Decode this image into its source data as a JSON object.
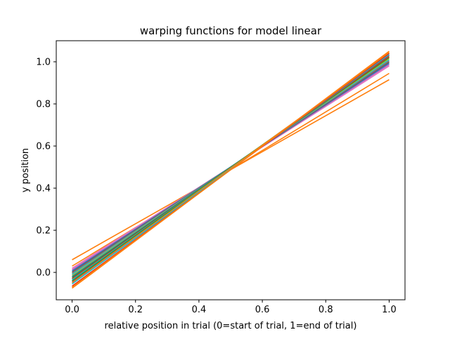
{
  "chart_data": {
    "type": "line",
    "title": "warping functions for model  linear",
    "xlabel": "relative position in trial (0=start of trial, 1=end of trial)",
    "ylabel": "y position",
    "xlim": [
      -0.05,
      1.05
    ],
    "ylim": [
      -0.13,
      1.1
    ],
    "xticks": [
      0.0,
      0.2,
      0.4,
      0.6,
      0.8,
      1.0
    ],
    "xtick_labels": [
      "0.0",
      "0.2",
      "0.4",
      "0.6",
      "0.8",
      "1.0"
    ],
    "yticks": [
      0.0,
      0.2,
      0.4,
      0.6,
      0.8,
      1.0
    ],
    "ytick_labels": [
      "0.0",
      "0.2",
      "0.4",
      "0.6",
      "0.8",
      "1.0"
    ],
    "grid": false,
    "legend": false,
    "x": [
      0.0,
      1.0
    ],
    "series": [
      {
        "values": [
          0.06,
          0.915
        ],
        "color": "#ff7f0e"
      },
      {
        "values": [
          0.03,
          0.945
        ],
        "color": "#ff7f0e"
      },
      {
        "values": [
          0.02,
          0.98
        ],
        "color": "#e377c2"
      },
      {
        "values": [
          0.015,
          0.985
        ],
        "color": "#e377c2"
      },
      {
        "values": [
          0.01,
          0.99
        ],
        "color": "#9467bd"
      },
      {
        "values": [
          0.005,
          0.995
        ],
        "color": "#1f77b4"
      },
      {
        "values": [
          0.0,
          1.0
        ],
        "color": "#8c564b"
      },
      {
        "values": [
          -0.005,
          1.005
        ],
        "color": "#7f7f7f"
      },
      {
        "values": [
          -0.01,
          1.01
        ],
        "color": "#17becf"
      },
      {
        "values": [
          -0.015,
          1.015
        ],
        "color": "#bcbd22"
      },
      {
        "values": [
          -0.02,
          1.02
        ],
        "color": "#1f77b4"
      },
      {
        "values": [
          -0.025,
          1.02
        ],
        "color": "#2ca02c"
      },
      {
        "values": [
          -0.03,
          1.025
        ],
        "color": "#d62728"
      },
      {
        "values": [
          -0.035,
          1.03
        ],
        "color": "#17becf"
      },
      {
        "values": [
          -0.04,
          1.035
        ],
        "color": "#2ca02c"
      },
      {
        "values": [
          -0.045,
          1.03
        ],
        "color": "#8c564b"
      },
      {
        "values": [
          -0.05,
          1.04
        ],
        "color": "#ff7f0e"
      },
      {
        "values": [
          -0.055,
          1.035
        ],
        "color": "#17becf"
      },
      {
        "values": [
          -0.065,
          1.04
        ],
        "color": "#d62728"
      },
      {
        "values": [
          -0.07,
          1.045
        ],
        "color": "#ff7f0e"
      },
      {
        "values": [
          -0.075,
          1.05
        ],
        "color": "#ff7f0e"
      }
    ]
  }
}
